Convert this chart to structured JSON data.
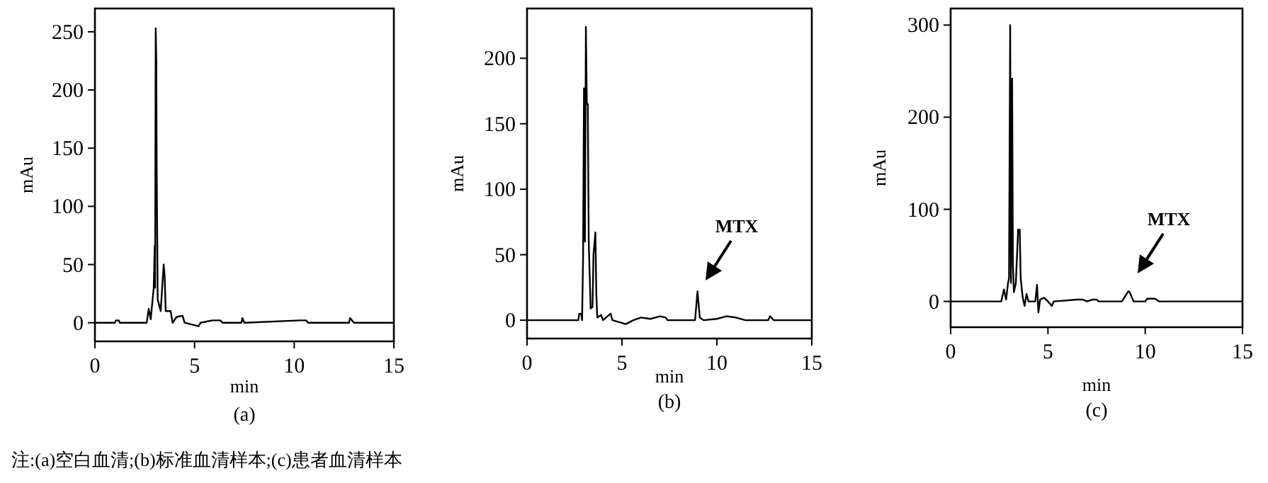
{
  "chart_data": [
    {
      "type": "line",
      "xlabel": "min",
      "ylabel": "mAu",
      "xlim": [
        0,
        15
      ],
      "ylim": [
        -16,
        270
      ],
      "xticks": [
        0,
        5,
        10,
        15
      ],
      "yticks": [
        0,
        50,
        100,
        150,
        200,
        250
      ],
      "series": [
        {
          "color": "#000000",
          "x": [
            0,
            1.0,
            1.05,
            1.2,
            1.25,
            2.6,
            2.7,
            2.8,
            2.95,
            3.0,
            3.02,
            3.05,
            3.08,
            3.1,
            3.15,
            3.3,
            3.45,
            3.5,
            3.55,
            3.6,
            3.8,
            3.9,
            4.1,
            4.4,
            4.5,
            5.2,
            5.3,
            5.9,
            6.3,
            6.4,
            7.35,
            7.4,
            7.5,
            10.3,
            10.6,
            10.7,
            12.75,
            12.8,
            13.0,
            15
          ],
          "values": [
            0,
            0,
            2,
            2,
            0,
            0,
            12,
            3,
            30,
            66,
            30,
            253,
            225,
            130,
            20,
            10,
            50,
            40,
            10,
            10,
            10,
            0,
            5,
            6,
            0,
            -3,
            0,
            2,
            2,
            0,
            0,
            4,
            0,
            2,
            2,
            0,
            0,
            4,
            0,
            0
          ]
        }
      ],
      "annotations": [
        "(a)",
        "注:(a)空白血清;(b)标准血清样本;(c)患者血清样本"
      ]
    },
    {
      "type": "line",
      "xlabel": "min",
      "ylabel": "mAu",
      "xlim": [
        0,
        15
      ],
      "ylim": [
        -14,
        238
      ],
      "xticks": [
        0,
        5,
        10,
        15
      ],
      "yticks": [
        0,
        50,
        100,
        150,
        200
      ],
      "series": [
        {
          "color": "#000000",
          "x": [
            0,
            2.7,
            2.75,
            2.85,
            2.9,
            2.95,
            3.0,
            3.05,
            3.1,
            3.15,
            3.2,
            3.25,
            3.35,
            3.45,
            3.5,
            3.6,
            3.65,
            3.7,
            3.9,
            4.0,
            4.4,
            4.5,
            5.2,
            5.6,
            6.0,
            6.5,
            7.0,
            7.3,
            7.4,
            8.85,
            8.98,
            9.1,
            9.3,
            10.0,
            10.5,
            11.0,
            11.5,
            12.7,
            12.8,
            13.0,
            15
          ],
          "values": [
            0,
            0,
            5,
            5,
            0,
            46,
            177,
            60,
            224,
            165,
            165,
            60,
            9,
            10,
            50,
            67,
            20,
            2,
            4,
            0,
            5,
            0,
            -3,
            0,
            2,
            1,
            3,
            2,
            0,
            0,
            22,
            2,
            0,
            1,
            3,
            2,
            0,
            0,
            3,
            0,
            0
          ]
        }
      ],
      "annotations": [
        "(b)",
        "MTX"
      ]
    },
    {
      "type": "line",
      "xlabel": "min",
      "ylabel": "mAu",
      "xlim": [
        0,
        15
      ],
      "ylim": [
        -28,
        318
      ],
      "xticks": [
        0,
        5,
        10,
        15
      ],
      "yticks": [
        0,
        100,
        200,
        300
      ],
      "series": [
        {
          "color": "#000000",
          "x": [
            0,
            2.6,
            2.74,
            2.85,
            2.95,
            3.0,
            3.06,
            3.1,
            3.16,
            3.2,
            3.25,
            3.35,
            3.47,
            3.55,
            3.6,
            3.7,
            3.8,
            3.9,
            4.0,
            4.35,
            4.44,
            4.51,
            4.6,
            4.8,
            5.0,
            5.2,
            5.3,
            6.5,
            6.8,
            7.0,
            7.3,
            7.5,
            7.6,
            8.8,
            9.13,
            9.2,
            9.4,
            10.0,
            10.1,
            10.5,
            10.7,
            15
          ],
          "values": [
            0,
            0,
            13,
            2,
            20,
            25,
            300,
            20,
            242,
            40,
            10,
            20,
            78,
            78,
            25,
            5,
            -5,
            8,
            0,
            0,
            18,
            -12,
            2,
            4,
            0,
            -5,
            0,
            2,
            2,
            0,
            2,
            2,
            0,
            0,
            11,
            10,
            0,
            0,
            3,
            3,
            0,
            0
          ]
        }
      ],
      "annotations": [
        "(c)",
        "MTX"
      ]
    }
  ]
}
